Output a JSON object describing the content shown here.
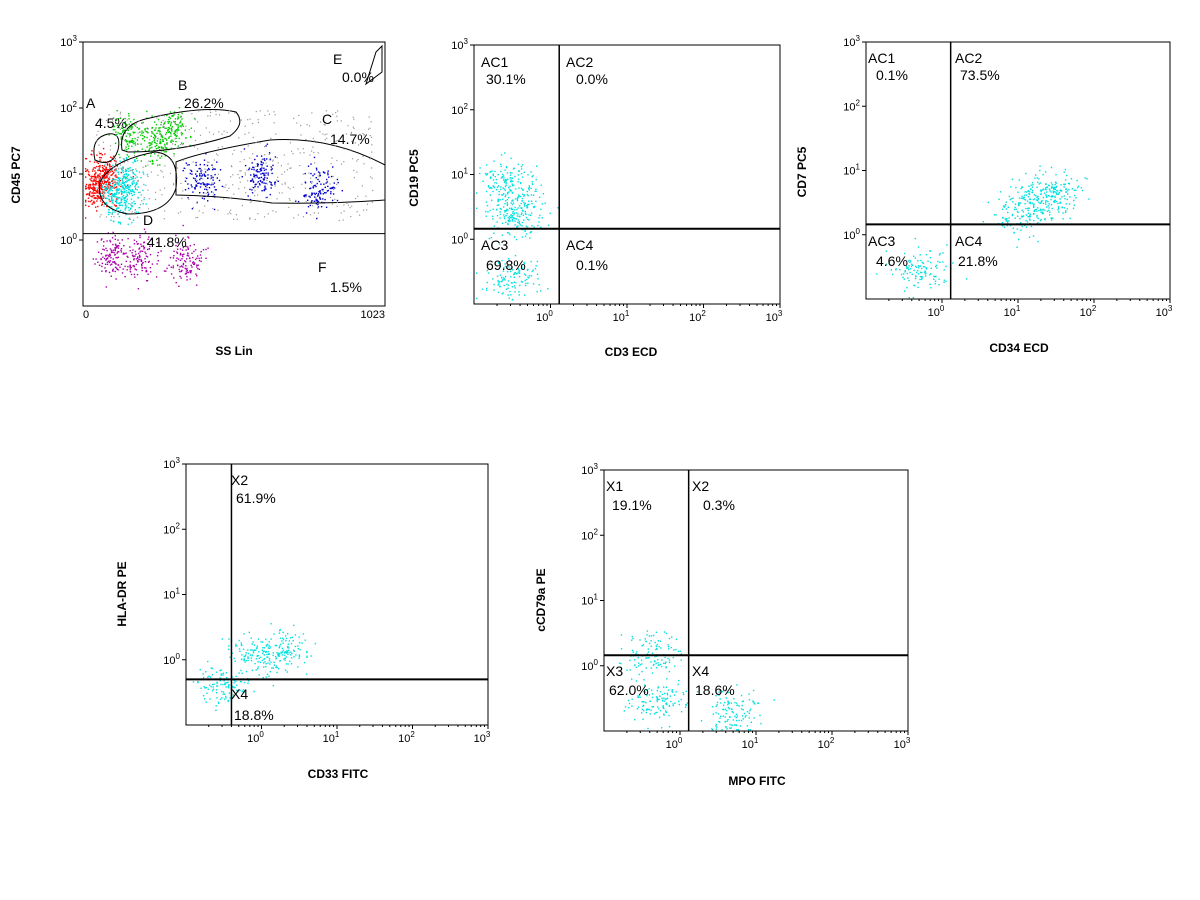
{
  "chart_data": [
    {
      "type": "scatter",
      "id": "ss-cd45",
      "xlabel": "SS Lin",
      "ylabel": "CD45 PC7",
      "x_scale": "linear",
      "y_scale": "log",
      "xlim": [
        0,
        1023
      ],
      "ylim": [
        0.1,
        1000
      ],
      "x_ticks": [
        {
          "value": 0,
          "label": "0"
        },
        {
          "value": 1023,
          "label": "1023"
        }
      ],
      "y_ticks": [
        {
          "value": 1,
          "label": "10",
          "exp": "0"
        },
        {
          "value": 10,
          "label": "10",
          "exp": "1"
        },
        {
          "value": 100,
          "label": "10",
          "exp": "2"
        },
        {
          "value": 1000,
          "label": "10",
          "exp": "3"
        }
      ],
      "gates": [
        {
          "name": "A",
          "percent": "4.5%",
          "color": "#ff0000",
          "points": [
            [
              40,
              6
            ],
            [
              60,
              8
            ],
            [
              80,
              10
            ]
          ]
        },
        {
          "name": "B",
          "percent": "26.2%",
          "color": "#00cc00",
          "points": [
            [
              150,
              40
            ],
            [
              300,
              50
            ],
            [
              240,
              32
            ]
          ]
        },
        {
          "name": "C",
          "percent": "14.7%",
          "color": "#0000cc",
          "points": [
            [
              400,
              8
            ],
            [
              600,
              10
            ],
            [
              800,
              6
            ]
          ]
        },
        {
          "name": "D",
          "percent": "41.8%",
          "color": "#00e0e0",
          "points": [
            [
              110,
              6
            ],
            [
              130,
              4
            ],
            [
              150,
              8
            ]
          ]
        },
        {
          "name": "E",
          "percent": "0.0%",
          "color": "#000000",
          "points": []
        },
        {
          "name": "F",
          "percent": "1.5%",
          "color": "#aa00aa",
          "points": [
            [
              100,
              0.6
            ],
            [
              200,
              0.55
            ],
            [
              350,
              0.5
            ]
          ]
        }
      ],
      "threshold_y": 1.25,
      "annotations": [
        "A",
        "4.5%",
        "B",
        "26.2%",
        "C",
        "14.7%",
        "D",
        "41.8%",
        "E",
        "0.0%",
        "F",
        "1.5%"
      ]
    },
    {
      "type": "scatter",
      "id": "cd3-cd19",
      "xlabel": "CD3 ECD",
      "ylabel": "CD19 PC5",
      "x_scale": "log",
      "y_scale": "log",
      "xlim": [
        0.1,
        1000
      ],
      "ylim": [
        0.1,
        1000
      ],
      "quadrant_x": 1.3,
      "quadrant_y": 1.45,
      "quadrants": [
        {
          "name": "AC1",
          "percent": "30.1%"
        },
        {
          "name": "AC2",
          "percent": "0.0%"
        },
        {
          "name": "AC3",
          "percent": "69.8%"
        },
        {
          "name": "AC4",
          "percent": "0.1%"
        }
      ],
      "populations": [
        {
          "color": "#00e0e0",
          "points": [
            [
              0.3,
              4
            ],
            [
              0.25,
              8
            ],
            [
              0.35,
              2
            ],
            [
              0.3,
              0.25
            ]
          ]
        }
      ]
    },
    {
      "type": "scatter",
      "id": "cd34-cd7",
      "xlabel": "CD34 ECD",
      "ylabel": "CD7 PC5",
      "x_scale": "log",
      "y_scale": "log",
      "xlim": [
        0.1,
        1000
      ],
      "ylim": [
        0.1,
        1000
      ],
      "quadrant_x": 1.3,
      "quadrant_y": 1.45,
      "quadrants": [
        {
          "name": "AC1",
          "percent": "0.1%"
        },
        {
          "name": "AC2",
          "percent": "73.5%"
        },
        {
          "name": "AC3",
          "percent": "4.6%"
        },
        {
          "name": "AC4",
          "percent": "21.8%"
        }
      ],
      "populations": [
        {
          "color": "#00e0e0",
          "points": [
            [
              20,
              3.5
            ],
            [
              10,
              2
            ],
            [
              30,
              5
            ],
            [
              0.5,
              0.3
            ]
          ]
        }
      ]
    },
    {
      "type": "scatter",
      "id": "cd33-hladr",
      "xlabel": "CD33 FITC",
      "ylabel": "HLA-DR PE",
      "x_scale": "log",
      "y_scale": "log",
      "xlim": [
        0.1,
        1000
      ],
      "ylim": [
        0.1,
        1000
      ],
      "quadrant_x": 0.4,
      "quadrant_y": 0.5,
      "quadrants": [
        {
          "name": "X2",
          "percent": "61.9%"
        },
        {
          "name": "X4",
          "percent": "18.8%"
        }
      ],
      "populations": [
        {
          "color": "#00e0e0",
          "points": [
            [
              0.8,
              1.2
            ],
            [
              2,
              1.5
            ],
            [
              0.3,
              0.4
            ]
          ]
        }
      ]
    },
    {
      "type": "scatter",
      "id": "mpo-cd79a",
      "xlabel": "MPO FITC",
      "ylabel": "cCD79a PE",
      "x_scale": "log",
      "y_scale": "log",
      "xlim": [
        0.1,
        1000
      ],
      "ylim": [
        0.1,
        1000
      ],
      "quadrant_x": 1.3,
      "quadrant_y": 1.45,
      "quadrants": [
        {
          "name": "X1",
          "percent": "19.1%"
        },
        {
          "name": "X2",
          "percent": "0.3%"
        },
        {
          "name": "X3",
          "percent": "62.0%"
        },
        {
          "name": "X4",
          "percent": "18.6%"
        }
      ],
      "populations": [
        {
          "color": "#00e0e0",
          "points": [
            [
              0.4,
              1.5
            ],
            [
              0.5,
              0.3
            ],
            [
              5,
              0.2
            ]
          ]
        }
      ]
    }
  ]
}
